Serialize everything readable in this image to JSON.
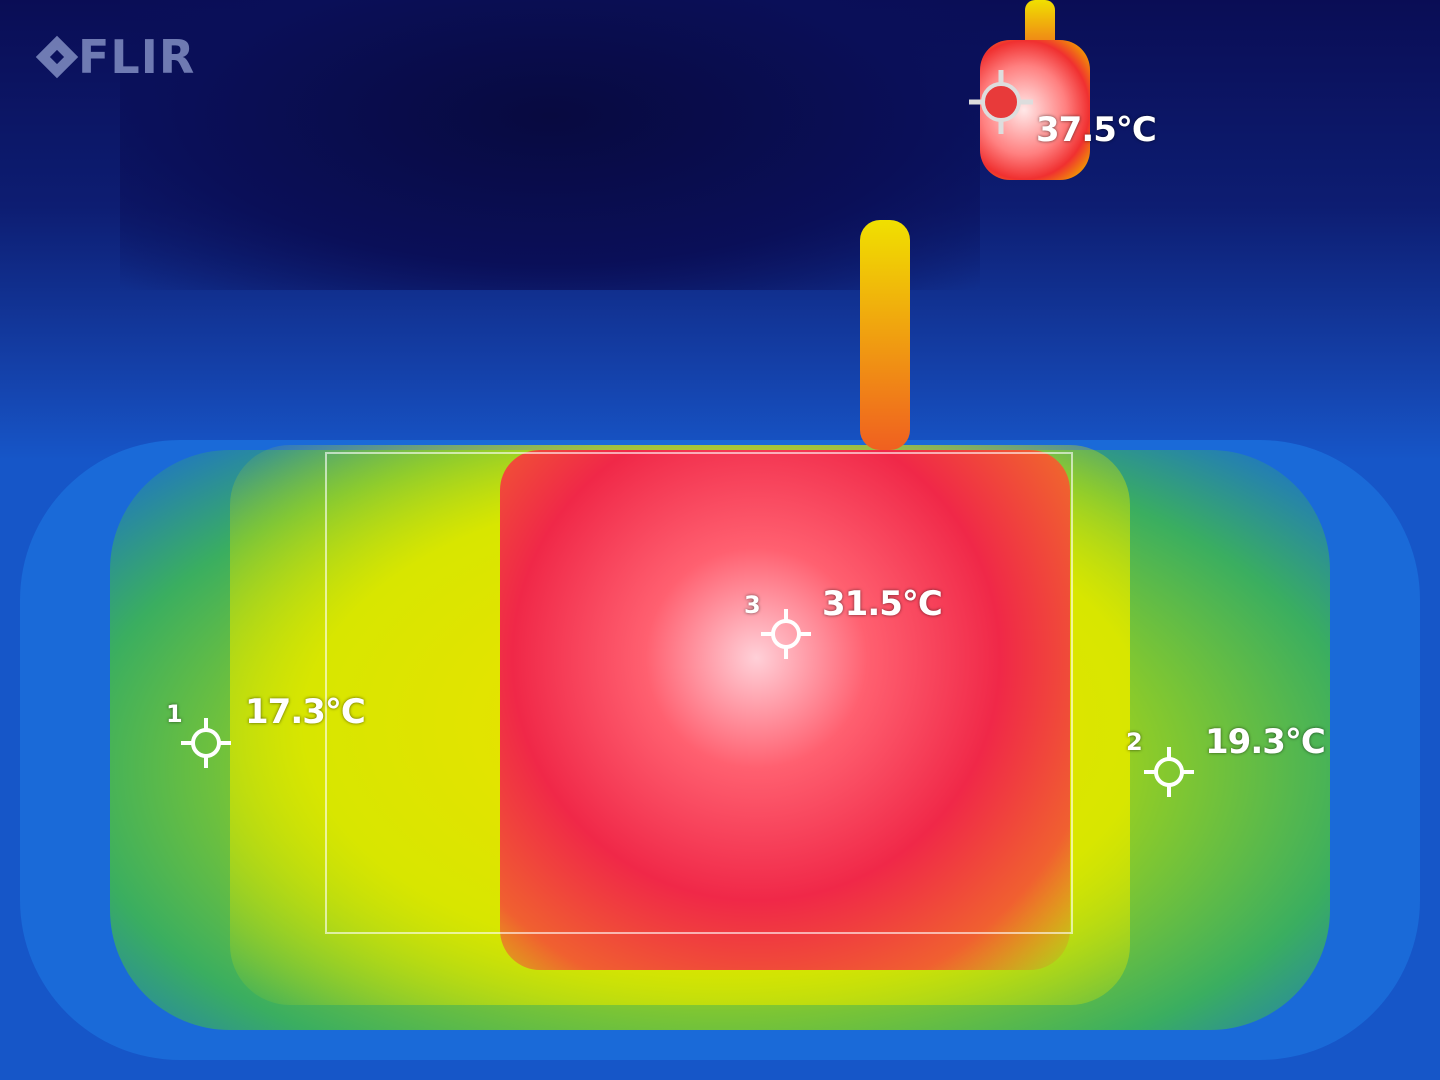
{
  "logo": {
    "text": "FLIR"
  },
  "measurements": {
    "hotspot": {
      "temperature": "37.5°C",
      "marker_color": "#e83a3a"
    },
    "spot1": {
      "number": "1",
      "temperature": "17.3°C"
    },
    "spot2": {
      "number": "2",
      "temperature": "19.3°C"
    },
    "spot3": {
      "number": "3",
      "temperature": "31.5°C"
    }
  }
}
